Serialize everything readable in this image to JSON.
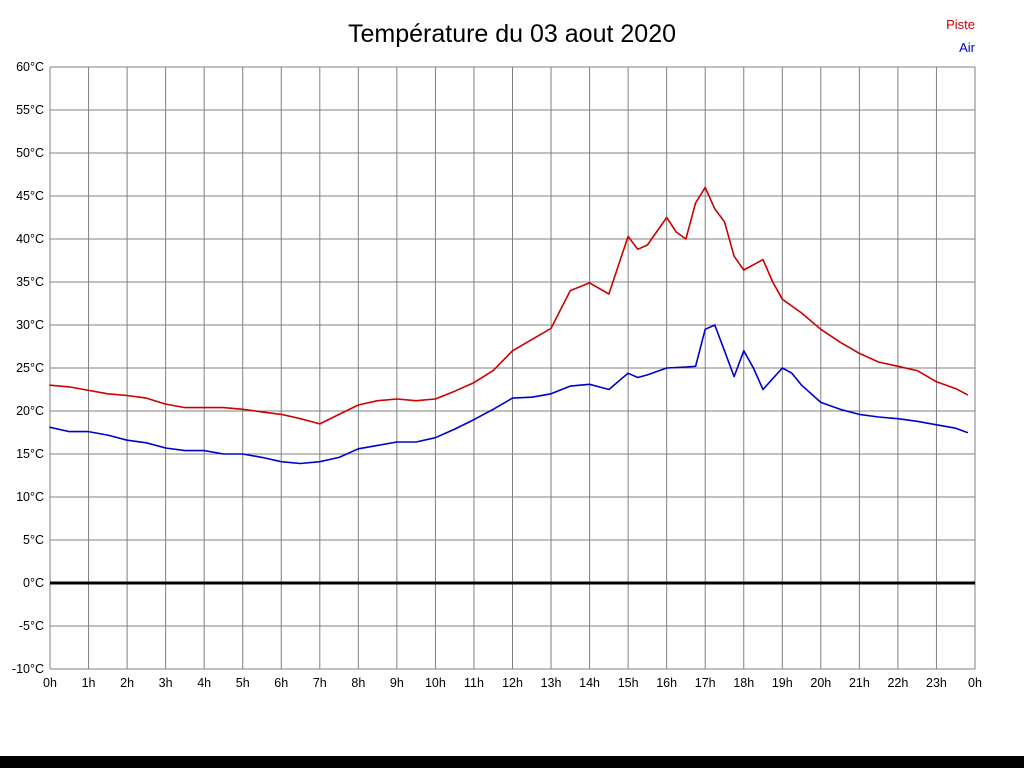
{
  "chart_data": {
    "type": "line",
    "title": "Température du 03 aout 2020",
    "xlabel": "",
    "ylabel": "",
    "xlim": [
      0,
      24
    ],
    "ylim": [
      -10,
      60
    ],
    "grid": true,
    "grid_color": "#808080",
    "zero_line": {
      "value": 0,
      "color": "#000000",
      "width": 3
    },
    "legend_position": "top-right",
    "x_tick_labels": [
      "0h",
      "1h",
      "2h",
      "3h",
      "4h",
      "5h",
      "6h",
      "7h",
      "8h",
      "9h",
      "10h",
      "11h",
      "12h",
      "13h",
      "14h",
      "15h",
      "16h",
      "17h",
      "18h",
      "19h",
      "20h",
      "21h",
      "22h",
      "23h",
      "0h"
    ],
    "y_ticks": [
      {
        "value": 60,
        "label": "60°C"
      },
      {
        "value": 55,
        "label": "55°C"
      },
      {
        "value": 50,
        "label": "50°C"
      },
      {
        "value": 45,
        "label": "45°C"
      },
      {
        "value": 40,
        "label": "40°C"
      },
      {
        "value": 35,
        "label": "35°C"
      },
      {
        "value": 30,
        "label": "30°C"
      },
      {
        "value": 25,
        "label": "25°C"
      },
      {
        "value": 20,
        "label": "20°C"
      },
      {
        "value": 15,
        "label": "15°C"
      },
      {
        "value": 10,
        "label": "10°C"
      },
      {
        "value": 5,
        "label": "5°C"
      },
      {
        "value": 0,
        "label": "0°C"
      },
      {
        "value": -5,
        "label": "-5°C"
      },
      {
        "value": -10,
        "label": "-10°C"
      }
    ],
    "series": [
      {
        "name": "Piste",
        "color": "#cc0000",
        "points": [
          [
            0,
            23
          ],
          [
            0.5,
            22.8
          ],
          [
            1,
            22.4
          ],
          [
            1.5,
            22
          ],
          [
            2,
            21.8
          ],
          [
            2.5,
            21.5
          ],
          [
            3,
            20.8
          ],
          [
            3.5,
            20.4
          ],
          [
            4,
            20.4
          ],
          [
            4.5,
            20.4
          ],
          [
            5,
            20.2
          ],
          [
            5.5,
            19.9
          ],
          [
            6,
            19.6
          ],
          [
            6.5,
            19.1
          ],
          [
            7,
            18.5
          ],
          [
            7.5,
            19.6
          ],
          [
            8,
            20.7
          ],
          [
            8.5,
            21.2
          ],
          [
            9,
            21.4
          ],
          [
            9.5,
            21.2
          ],
          [
            10,
            21.4
          ],
          [
            10.5,
            22.3
          ],
          [
            11,
            23.3
          ],
          [
            11.5,
            24.7
          ],
          [
            12,
            27
          ],
          [
            12.5,
            28.3
          ],
          [
            13,
            29.6
          ],
          [
            13.5,
            34
          ],
          [
            14,
            34.9
          ],
          [
            14.5,
            33.6
          ],
          [
            15,
            40.3
          ],
          [
            15.25,
            38.8
          ],
          [
            15.5,
            39.3
          ],
          [
            16,
            42.5
          ],
          [
            16.25,
            40.8
          ],
          [
            16.5,
            40
          ],
          [
            16.75,
            44.2
          ],
          [
            17,
            46
          ],
          [
            17.25,
            43.5
          ],
          [
            17.5,
            42
          ],
          [
            17.75,
            38
          ],
          [
            18,
            36.4
          ],
          [
            18.25,
            37
          ],
          [
            18.5,
            37.6
          ],
          [
            18.75,
            35
          ],
          [
            19,
            33
          ],
          [
            19.5,
            31.4
          ],
          [
            20,
            29.5
          ],
          [
            20.5,
            28
          ],
          [
            21,
            26.7
          ],
          [
            21.5,
            25.7
          ],
          [
            22,
            25.2
          ],
          [
            22.5,
            24.7
          ],
          [
            23,
            23.4
          ],
          [
            23.5,
            22.6
          ],
          [
            23.8,
            21.9
          ]
        ]
      },
      {
        "name": "Air",
        "color": "#0000cc",
        "points": [
          [
            0,
            18.1
          ],
          [
            0.5,
            17.6
          ],
          [
            1,
            17.6
          ],
          [
            1.5,
            17.2
          ],
          [
            2,
            16.6
          ],
          [
            2.5,
            16.3
          ],
          [
            3,
            15.7
          ],
          [
            3.5,
            15.4
          ],
          [
            4,
            15.4
          ],
          [
            4.5,
            15
          ],
          [
            5,
            15
          ],
          [
            5.5,
            14.6
          ],
          [
            6,
            14.1
          ],
          [
            6.5,
            13.9
          ],
          [
            7,
            14.1
          ],
          [
            7.5,
            14.6
          ],
          [
            8,
            15.6
          ],
          [
            8.5,
            16
          ],
          [
            9,
            16.4
          ],
          [
            9.5,
            16.4
          ],
          [
            10,
            16.9
          ],
          [
            10.5,
            17.9
          ],
          [
            11,
            19
          ],
          [
            11.5,
            20.2
          ],
          [
            12,
            21.5
          ],
          [
            12.5,
            21.6
          ],
          [
            13,
            22
          ],
          [
            13.5,
            22.9
          ],
          [
            14,
            23.1
          ],
          [
            14.5,
            22.5
          ],
          [
            15,
            24.4
          ],
          [
            15.25,
            23.9
          ],
          [
            15.5,
            24.2
          ],
          [
            16,
            25
          ],
          [
            16.5,
            25.1
          ],
          [
            16.75,
            25.2
          ],
          [
            17,
            29.5
          ],
          [
            17.25,
            30
          ],
          [
            17.5,
            27
          ],
          [
            17.75,
            24
          ],
          [
            18,
            27
          ],
          [
            18.25,
            25
          ],
          [
            18.5,
            22.5
          ],
          [
            19,
            25
          ],
          [
            19.25,
            24.4
          ],
          [
            19.5,
            23
          ],
          [
            20,
            21
          ],
          [
            20.5,
            20.2
          ],
          [
            21,
            19.6
          ],
          [
            21.5,
            19.3
          ],
          [
            22,
            19.1
          ],
          [
            22.5,
            18.8
          ],
          [
            23,
            18.4
          ],
          [
            23.5,
            18
          ],
          [
            23.8,
            17.5
          ]
        ]
      }
    ]
  }
}
